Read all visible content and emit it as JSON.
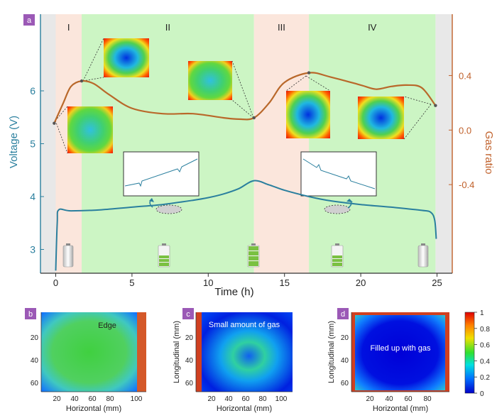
{
  "chart_data": [
    {
      "panel_label": "a",
      "type": "line",
      "xlabel": "Time (h)",
      "ylabel_left": "Voltage (V)",
      "ylabel_right": "Gas ratio",
      "xlim": [
        -1,
        26
      ],
      "ylim_left": [
        2.55,
        7.45
      ],
      "ylim_right": [
        -1.05,
        0.85
      ],
      "x_ticks": [
        0,
        5,
        10,
        15,
        20,
        25
      ],
      "y_left_ticks": [
        3,
        4,
        5,
        6
      ],
      "y_right_ticks": [
        "-0.4",
        "0.0",
        "0.4"
      ],
      "y_right_tick_values": [
        -0.4,
        0.0,
        0.4
      ],
      "stages": [
        {
          "label": "I",
          "x0": 0.0,
          "x1": 1.7,
          "color": "#fbe6dc"
        },
        {
          "label": "II",
          "x0": 1.7,
          "x1": 13.0,
          "color": "#ccf5c4"
        },
        {
          "label": "III",
          "x0": 13.0,
          "x1": 16.6,
          "color": "#fbe6dc"
        },
        {
          "label": "IV",
          "x0": 16.6,
          "x1": 24.9,
          "color": "#ccf5c4"
        }
      ],
      "side_regions": [
        {
          "x0": -1.0,
          "x1": 0.0,
          "color": "#e8e8e8"
        },
        {
          "x0": 24.9,
          "x1": 26.0,
          "color": "#e8e8e8"
        }
      ],
      "series": [
        {
          "axis": "left",
          "color": "#2a7f9e",
          "x": [
            0,
            0.1,
            0.2,
            1,
            3,
            5,
            7,
            9,
            10,
            11,
            12,
            13,
            14,
            15,
            16.6,
            18,
            20,
            22,
            24,
            24.6,
            24.85,
            24.95
          ],
          "y": [
            2.6,
            3.5,
            3.75,
            3.73,
            3.75,
            3.8,
            3.85,
            3.93,
            3.98,
            4.05,
            4.15,
            4.3,
            4.22,
            4.12,
            4.0,
            3.92,
            3.85,
            3.8,
            3.74,
            3.7,
            3.55,
            3.2
          ]
        },
        {
          "axis": "right",
          "color": "#b9682a",
          "x": [
            -0.1,
            0.5,
            1.0,
            1.7,
            2.5,
            3.5,
            5,
            7,
            9,
            11,
            12,
            13,
            14,
            15,
            16.6,
            18,
            20,
            21,
            22,
            23,
            24,
            24.9
          ],
          "y": [
            0.05,
            0.2,
            0.32,
            0.36,
            0.34,
            0.26,
            0.16,
            0.12,
            0.12,
            0.09,
            0.08,
            0.09,
            0.2,
            0.35,
            0.42,
            0.39,
            0.33,
            0.3,
            0.32,
            0.33,
            0.31,
            0.18
          ]
        }
      ]
    },
    {
      "panel_label": "b",
      "type": "heatmap",
      "xlabel": "Horizontal (mm)",
      "ylabel": "",
      "x_ticks": [
        "20",
        "40",
        "60",
        "80",
        "100"
      ],
      "y_ticks": [
        "20",
        "40",
        "60"
      ],
      "annotation": "Edge",
      "pattern": "uniform_green"
    },
    {
      "panel_label": "c",
      "type": "heatmap",
      "xlabel": "Horizontal (mm)",
      "ylabel": "Longitudinal (mm)",
      "x_ticks": [
        "20",
        "40",
        "60",
        "80",
        "100"
      ],
      "y_ticks": [
        "20",
        "40",
        "60"
      ],
      "annotation": "Small amount of gas",
      "pattern": "partial_blue"
    },
    {
      "panel_label": "d",
      "type": "heatmap",
      "xlabel": "Horizontal (mm)",
      "ylabel": "Longitudinal (mm)",
      "x_ticks": [
        "20",
        "40",
        "60",
        "80"
      ],
      "y_ticks": [
        "20",
        "40",
        "60"
      ],
      "annotation": "Filled up with gas",
      "pattern": "filled_blue"
    }
  ],
  "colorbar": {
    "ticks": [
      "0",
      "0.2",
      "0.4",
      "0.6",
      "0.8",
      "1"
    ],
    "stops": [
      "#0000c8",
      "#0070ff",
      "#00e0e0",
      "#30e030",
      "#f0e000",
      "#ff8000",
      "#e00000"
    ]
  },
  "colors": {
    "voltage_axis": "#2a7f9e",
    "gas_axis": "#c0602a",
    "panel_label_bg": "#9b59b6"
  },
  "icons": [
    "battery-empty-icon",
    "battery-half-icon",
    "battery-full-icon",
    "battery-half-icon",
    "battery-empty-icon"
  ]
}
